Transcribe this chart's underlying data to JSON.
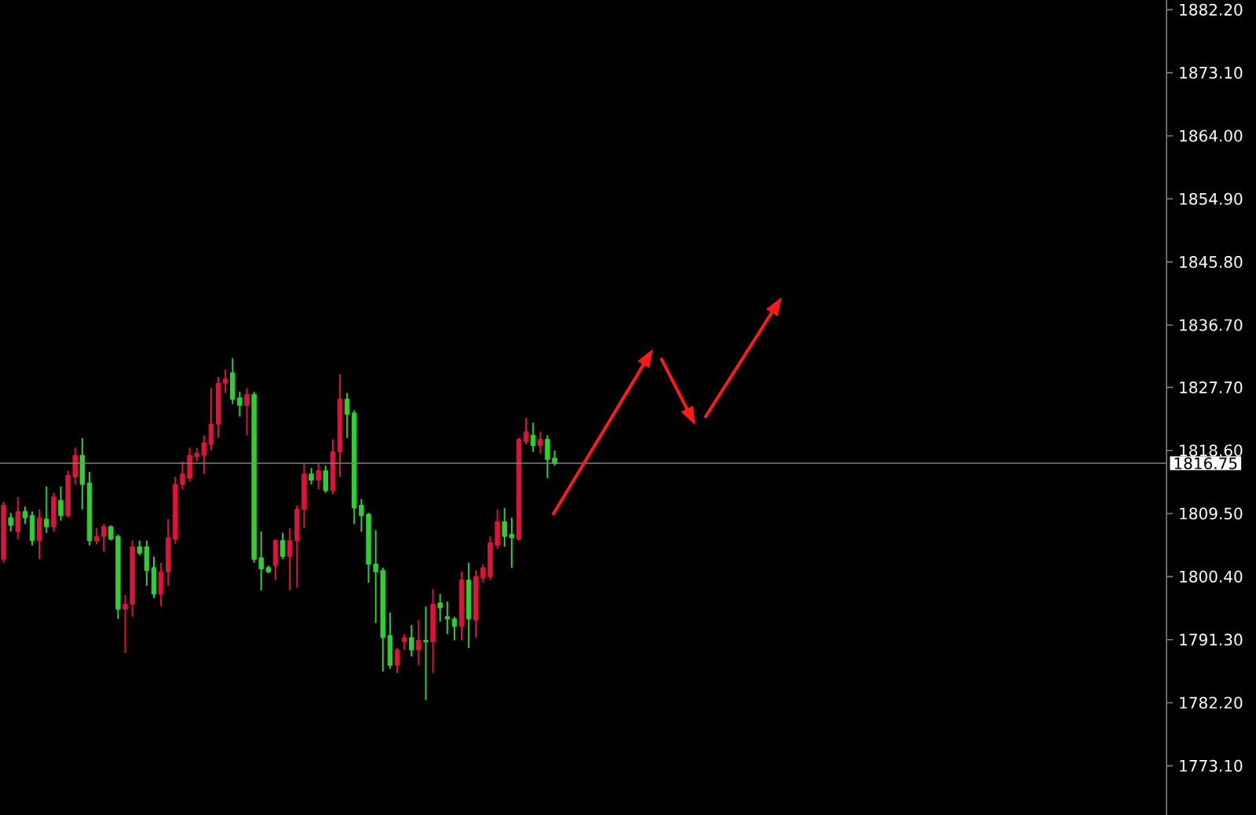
{
  "chart_data": {
    "type": "candlestick",
    "tick_labels": "y",
    "categories": [
      null,
      null,
      null,
      null,
      null,
      null,
      null,
      null,
      null,
      null,
      null,
      null,
      null,
      null,
      null,
      null,
      null,
      null,
      null,
      null,
      null,
      null,
      null,
      null,
      null,
      null,
      null,
      null,
      null,
      null,
      null,
      null,
      null,
      null,
      null,
      null,
      null,
      null,
      null,
      null,
      null,
      null,
      null,
      null,
      null,
      null,
      null,
      null,
      null,
      null,
      null,
      null,
      null,
      null,
      null,
      null,
      null,
      null,
      null,
      null,
      null,
      null,
      null,
      null,
      null,
      null,
      null,
      null,
      null,
      null,
      null,
      null,
      null,
      null,
      null,
      null,
      null,
      null,
      null,
      null,
      null,
      null,
      null,
      null,
      null,
      null,
      null,
      null,
      null,
      null,
      null,
      null,
      null,
      null,
      null,
      null,
      null,
      null,
      null,
      null,
      null,
      null,
      null,
      null,
      null,
      null,
      null,
      null,
      null,
      null,
      null,
      null,
      null,
      null,
      null,
      null,
      null,
      null,
      null,
      null,
      null,
      null,
      null,
      null,
      null,
      null,
      null,
      null,
      null,
      null,
      null,
      null,
      null,
      null,
      null,
      null,
      null,
      null,
      null,
      null,
      null,
      null,
      null,
      null,
      null,
      null,
      null,
      null,
      null,
      null,
      null,
      null,
      null,
      null,
      null,
      null,
      null,
      null,
      null,
      null,
      null,
      null,
      null
    ],
    "ohlc": [
      [
        1802.9,
        1811.2,
        1802.4,
        1810.7
      ],
      [
        1808.9,
        1809.6,
        1806.9,
        1807.8
      ],
      [
        1806.9,
        1811.9,
        1805.8,
        1809.8
      ],
      [
        1809.8,
        1810.5,
        1808.0,
        1808.9
      ],
      [
        1809.2,
        1809.8,
        1804.9,
        1805.6
      ],
      [
        1805.6,
        1810.1,
        1802.9,
        1808.9
      ],
      [
        1808.7,
        1813.4,
        1806.7,
        1807.6
      ],
      [
        1807.6,
        1812.5,
        1806.9,
        1811.9
      ],
      [
        1811.4,
        1813.4,
        1808.5,
        1809.2
      ],
      [
        1809.2,
        1815.7,
        1808.9,
        1815.0
      ],
      [
        1814.8,
        1819.0,
        1813.7,
        1817.9
      ],
      [
        1817.9,
        1820.4,
        1810.1,
        1813.7
      ],
      [
        1813.9,
        1815.5,
        1804.9,
        1805.6
      ],
      [
        1805.6,
        1807.4,
        1805.1,
        1806.2
      ],
      [
        1806.2,
        1808.0,
        1804.0,
        1807.6
      ],
      [
        1807.6,
        1807.8,
        1805.6,
        1805.8
      ],
      [
        1806.2,
        1806.5,
        1794.3,
        1795.7
      ],
      [
        1795.7,
        1797.7,
        1789.4,
        1796.4
      ],
      [
        1796.4,
        1805.6,
        1794.6,
        1804.7
      ],
      [
        1804.7,
        1805.6,
        1803.5,
        1803.8
      ],
      [
        1804.7,
        1805.6,
        1799.1,
        1801.3
      ],
      [
        1801.7,
        1803.3,
        1797.3,
        1797.9
      ],
      [
        1797.9,
        1802.4,
        1796.1,
        1801.1
      ],
      [
        1801.1,
        1808.7,
        1799.1,
        1806.0
      ],
      [
        1805.8,
        1814.8,
        1805.1,
        1813.7
      ],
      [
        1813.7,
        1817.0,
        1813.0,
        1815.2
      ],
      [
        1814.6,
        1819.0,
        1814.1,
        1817.9
      ],
      [
        1817.7,
        1819.0,
        1817.0,
        1818.2
      ],
      [
        1817.9,
        1820.8,
        1815.2,
        1819.7
      ],
      [
        1819.5,
        1827.6,
        1818.6,
        1822.4
      ],
      [
        1822.4,
        1829.2,
        1820.4,
        1828.3
      ],
      [
        1828.3,
        1830.3,
        1826.9,
        1828.9
      ],
      [
        1829.8,
        1831.9,
        1825.3,
        1826.0
      ],
      [
        1826.2,
        1827.1,
        1823.5,
        1825.1
      ],
      [
        1825.1,
        1827.6,
        1820.8,
        1826.7
      ],
      [
        1826.7,
        1827.1,
        1802.4,
        1802.9
      ],
      [
        1803.1,
        1806.9,
        1798.4,
        1801.5
      ],
      [
        1801.7,
        1802.0,
        1800.9,
        1801.1
      ],
      [
        1802.0,
        1805.8,
        1799.9,
        1805.6
      ],
      [
        1805.6,
        1806.7,
        1802.9,
        1803.3
      ],
      [
        1803.3,
        1807.4,
        1798.4,
        1805.6
      ],
      [
        1805.6,
        1810.7,
        1798.8,
        1810.1
      ],
      [
        1810.1,
        1816.8,
        1807.4,
        1815.2
      ],
      [
        1815.2,
        1816.1,
        1813.7,
        1814.3
      ],
      [
        1814.3,
        1816.8,
        1813.0,
        1815.7
      ],
      [
        1815.7,
        1816.4,
        1812.5,
        1812.8
      ],
      [
        1812.8,
        1820.2,
        1812.3,
        1818.4
      ],
      [
        1818.4,
        1829.6,
        1814.8,
        1826.0
      ],
      [
        1826.0,
        1826.9,
        1820.4,
        1823.8
      ],
      [
        1824.0,
        1824.4,
        1808.0,
        1810.3
      ],
      [
        1810.7,
        1811.6,
        1806.9,
        1809.2
      ],
      [
        1809.4,
        1809.6,
        1799.5,
        1802.2
      ],
      [
        1802.2,
        1807.1,
        1793.7,
        1801.1
      ],
      [
        1801.3,
        1801.7,
        1786.7,
        1791.6
      ],
      [
        1791.9,
        1795.2,
        1787.1,
        1787.6
      ],
      [
        1787.6,
        1790.1,
        1786.5,
        1789.8
      ],
      [
        1791.0,
        1792.1,
        1789.8,
        1791.6
      ],
      [
        1791.6,
        1793.4,
        1788.9,
        1789.8
      ],
      [
        1789.8,
        1794.1,
        1787.6,
        1791.2
      ],
      [
        1791.2,
        1796.1,
        1782.6,
        1791.0
      ],
      [
        1791.0,
        1798.6,
        1786.5,
        1796.4
      ],
      [
        1796.6,
        1797.9,
        1793.9,
        1795.9
      ],
      [
        1794.6,
        1796.8,
        1792.1,
        1794.3
      ],
      [
        1794.3,
        1794.6,
        1791.2,
        1793.2
      ],
      [
        1793.2,
        1801.1,
        1791.2,
        1799.9
      ],
      [
        1799.9,
        1802.4,
        1790.1,
        1794.3
      ],
      [
        1794.1,
        1801.3,
        1791.6,
        1800.4
      ],
      [
        1800.2,
        1802.2,
        1799.5,
        1801.7
      ],
      [
        1800.4,
        1806.2,
        1799.9,
        1805.3
      ],
      [
        1804.9,
        1810.1,
        1804.4,
        1808.3
      ],
      [
        1808.3,
        1810.3,
        1804.7,
        1806.2
      ],
      [
        1806.5,
        1808.9,
        1801.7,
        1806.0
      ],
      [
        1805.8,
        1820.4,
        1805.6,
        1820.2
      ],
      [
        1819.9,
        1823.3,
        1819.5,
        1821.3
      ],
      [
        1820.8,
        1822.6,
        1818.4,
        1819.3
      ],
      [
        1819.3,
        1821.3,
        1818.2,
        1820.2
      ],
      [
        1820.2,
        1820.8,
        1814.6,
        1817.3
      ],
      [
        1817.5,
        1818.6,
        1816.4,
        1816.7
      ],
      null,
      null,
      null,
      null,
      null,
      null,
      null,
      null,
      null,
      null,
      null,
      null,
      null,
      null,
      null,
      null,
      null,
      null,
      null,
      null,
      null,
      null,
      null,
      null,
      null,
      null,
      null,
      null,
      null,
      null,
      null,
      null,
      null,
      null,
      null,
      null,
      null,
      null,
      null,
      null,
      null,
      null,
      null,
      null,
      null,
      null,
      null,
      null,
      null,
      null,
      null,
      null,
      null,
      null,
      null,
      null,
      null,
      null,
      null,
      null,
      null,
      null,
      null,
      null,
      null,
      null,
      null,
      null,
      null,
      null,
      null,
      null,
      null,
      null,
      null,
      null,
      null,
      null,
      null,
      null,
      null,
      null,
      null,
      null,
      null
    ],
    "colors": [
      "#dc143c",
      "#32cd32",
      "#dc143c",
      "#32cd32",
      "#32cd32",
      "#dc143c",
      "#32cd32",
      "#dc143c",
      "#32cd32",
      "#dc143c",
      "#dc143c",
      "#32cd32",
      "#32cd32",
      "#dc143c",
      "#dc143c",
      "#32cd32",
      "#32cd32",
      "#dc143c",
      "#dc143c",
      "#32cd32",
      "#32cd32",
      "#32cd32",
      "#dc143c",
      "#dc143c",
      "#dc143c",
      "#dc143c",
      "#dc143c",
      "#dc143c",
      "#dc143c",
      "#dc143c",
      "#dc143c",
      "#dc143c",
      "#32cd32",
      "#32cd32",
      "#dc143c",
      "#32cd32",
      "#32cd32",
      "#32cd32",
      "#dc143c",
      "#32cd32",
      "#dc143c",
      "#dc143c",
      "#dc143c",
      "#32cd32",
      "#dc143c",
      "#32cd32",
      "#dc143c",
      "#dc143c",
      "#32cd32",
      "#32cd32",
      "#32cd32",
      "#32cd32",
      "#32cd32",
      "#32cd32",
      "#32cd32",
      "#dc143c",
      "#dc143c",
      "#32cd32",
      "#dc143c",
      "#32cd32",
      "#dc143c",
      "#32cd32",
      "#32cd32",
      "#32cd32",
      "#dc143c",
      "#32cd32",
      "#dc143c",
      "#dc143c",
      "#dc143c",
      "#dc143c",
      "#32cd32",
      "#32cd32",
      "#dc143c",
      "#dc143c",
      "#32cd32",
      "#dc143c",
      "#32cd32",
      "#32cd32",
      null,
      null,
      null,
      null,
      null,
      null,
      null,
      null,
      null,
      null,
      null,
      null,
      null,
      null,
      null,
      null,
      null,
      null,
      null,
      null,
      null,
      null,
      null,
      null,
      null,
      null,
      null,
      null,
      null,
      null,
      null,
      null,
      null,
      null,
      null,
      null,
      null,
      null,
      null,
      null,
      null,
      null,
      null,
      null,
      null,
      null,
      null,
      null,
      null,
      null,
      null,
      null,
      null,
      null,
      null,
      null,
      null,
      null,
      null,
      null,
      null,
      null,
      null,
      null,
      null,
      null,
      null,
      null,
      null,
      null,
      null,
      null,
      null,
      null,
      null,
      null,
      null,
      null,
      null,
      null,
      null,
      null,
      null,
      null,
      null
    ],
    "ylim": [
      1766.0,
      1883.6
    ],
    "yticks": [
      {
        "value": 1882.2,
        "label": "1882.20"
      },
      {
        "value": 1873.1,
        "label": "1873.10"
      },
      {
        "value": 1864.0,
        "label": "1864.00"
      },
      {
        "value": 1854.9,
        "label": "1854.90"
      },
      {
        "value": 1845.8,
        "label": "1845.80"
      },
      {
        "value": 1836.7,
        "label": "1836.70"
      },
      {
        "value": 1827.7,
        "label": "1827.70"
      },
      {
        "value": 1818.6,
        "label": "1818.60"
      },
      {
        "value": 1809.5,
        "label": "1809.50"
      },
      {
        "value": 1800.4,
        "label": "1800.40"
      },
      {
        "value": 1791.3,
        "label": "1791.30"
      },
      {
        "value": 1782.2,
        "label": "1782.20"
      },
      {
        "value": 1773.1,
        "label": "1773.10"
      }
    ],
    "ref_lines": [
      {
        "axis": "y",
        "value": 1816.75,
        "label": "1816.75",
        "color": "#808080"
      }
    ]
  }
}
